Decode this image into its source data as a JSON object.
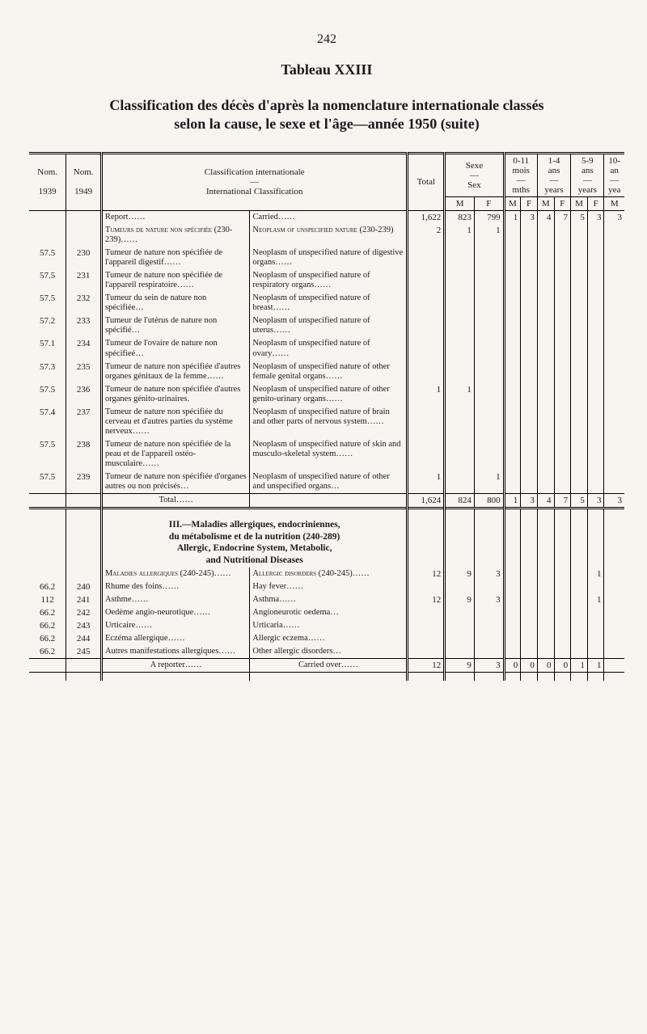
{
  "page_number": "242",
  "tableau": "Tableau XXIII",
  "main_title_line1": "Classification des décès d'après la nomenclature internationale classés",
  "main_title_line2": "selon la cause, le sexe et l'âge—année 1950 (suite)",
  "header": {
    "nom": "Nom.",
    "y1939": "1939",
    "y1949": "1949",
    "classification_fr": "Classification internationale",
    "classification_en": "International Classification",
    "total": "Total",
    "sexe": "Sexe",
    "sex": "Sex",
    "M": "M",
    "F": "F",
    "age": {
      "a0_11_fr": "0-11",
      "a0_11_en": "mois",
      "a0_11_en2": "mths",
      "a1_4_fr": "1-4",
      "a1_4_en": "ans",
      "a1_4_en2": "years",
      "a5_9_fr": "5-9",
      "a5_9_en": "ans",
      "a5_9_en2": "years",
      "a10_fr": "10-",
      "a10_en": "an",
      "a10_en2": "yea"
    }
  },
  "report_row": {
    "fr": "Report……",
    "en": "Carried……",
    "total": "1,622",
    "M": "823",
    "F": "799",
    "a0M": "1",
    "a0F": "3",
    "a1M": "4",
    "a1F": "7",
    "a5M": "5",
    "a5F": "3",
    "a10M": "3"
  },
  "tumeurs_hdr": {
    "fr": "Tumeurs de nature non spécifiée (230-239)……",
    "en": "Neoplasm of unspecified nature (230-239)",
    "total": "2",
    "M": "1",
    "F": "1"
  },
  "rows": [
    {
      "n1": "57.5",
      "n2": "230",
      "fr": "Tumeur de nature non spécifiée de l'appareil digestif……",
      "en": "Neoplasm of unspecified nature of digestive organs……"
    },
    {
      "n1": "57.5",
      "n2": "231",
      "fr": "Tumeur de nature non spécifiée de l'appareil respiratoire……",
      "en": "Neoplasm of unspecified nature of respiratory organs……"
    },
    {
      "n1": "57.5",
      "n2": "232",
      "fr": "Tumeur du sein de nature non spécifiée…",
      "en": "Neoplasm of unspecified nature of breast……"
    },
    {
      "n1": "57.2",
      "n2": "233",
      "fr": "Tumeur de l'utérus de nature non spécifié…",
      "en": "Neoplasm of unspecified nature of uterus……"
    },
    {
      "n1": "57.1",
      "n2": "234",
      "fr": "Tumeur de l'ovaire de nature non spécifieé…",
      "en": "Neoplasm of unspecified nature of ovary……"
    },
    {
      "n1": "57.3",
      "n2": "235",
      "fr": "Tumeur de nature non spécifiée d'autres organes génitaux de la femme……",
      "en": "Neoplasm of unspecified nature of other female genital organs……"
    },
    {
      "n1": "57.5",
      "n2": "236",
      "fr": "Tumeur de nature non spécifiée d'autres organes génito-urinaires.",
      "en": "Neoplasm of unspecified nature of other genito-urinary organs……",
      "total": "1",
      "M": "1"
    },
    {
      "n1": "57.4",
      "n2": "237",
      "fr": "Tumeur de nature non spécifiée du cerveau et d'autres parties du système nerveux……",
      "en": "Neoplasm of unspecified nature of brain and other parts of nervous system……"
    },
    {
      "n1": "57.5",
      "n2": "238",
      "fr": "Tumeur de nature non spécifiée de la peau et de l'appareil ostéo-musculaire……",
      "en": "Neoplasm of unspecified nature of skin and musculo-skeletal system……"
    },
    {
      "n1": "57.5",
      "n2": "239",
      "fr": "Tumeur de nature non spécifiée d'organes autres ou non précisés…",
      "en": "Neoplasm of unspecified nature of other and unspecified organs…",
      "total": "1",
      "F": "1"
    }
  ],
  "total_row": {
    "fr": "Total……",
    "total": "1,624",
    "M": "824",
    "F": "800",
    "a0M": "1",
    "a0F": "3",
    "a1M": "4",
    "a1F": "7",
    "a5M": "5",
    "a5F": "3",
    "a10M": "3"
  },
  "section3_title_lines": [
    "III.—Maladies allergiques, endocriniennes,",
    "du métabolisme et de la nutrition (240-289)",
    "Allergic, Endocrine System, Metabolic,",
    "and Nutritional Diseases"
  ],
  "maladies_hdr": {
    "fr": "Maladies allergiques (240-245)……",
    "en": "Allergic disorders (240-245)……",
    "total": "12",
    "M": "9",
    "F": "3",
    "a5F": "1"
  },
  "rows2": [
    {
      "n1": "66.2",
      "n2": "240",
      "fr": "Rhume des foins……",
      "en": "Hay fever……"
    },
    {
      "n1": "112",
      "n2": "241",
      "fr": "Asthme……",
      "en": "Asthma……",
      "total": "12",
      "M": "9",
      "F": "3",
      "a5F": "1"
    },
    {
      "n1": "66.2",
      "n2": "242",
      "fr": "Oedème angio-neurotique……",
      "en": "Angioneurotic oedema…"
    },
    {
      "n1": "66.2",
      "n2": "243",
      "fr": "Urticaire……",
      "en": "Urticaria……"
    },
    {
      "n1": "66.2",
      "n2": "244",
      "fr": "Eczéma allergique……",
      "en": "Allergic eczema……"
    },
    {
      "n1": "66.2",
      "n2": "245",
      "fr": "Autres manifestations allergiques……",
      "en": "Other allergic disorders…"
    }
  ],
  "carry_row": {
    "fr": "A reporter……",
    "en": "Carried over……",
    "total": "12",
    "M": "9",
    "F": "3",
    "a0M": "0",
    "a0F": "0",
    "a1M": "0",
    "a1F": "0",
    "a5M": "1",
    "a5F": "1"
  }
}
